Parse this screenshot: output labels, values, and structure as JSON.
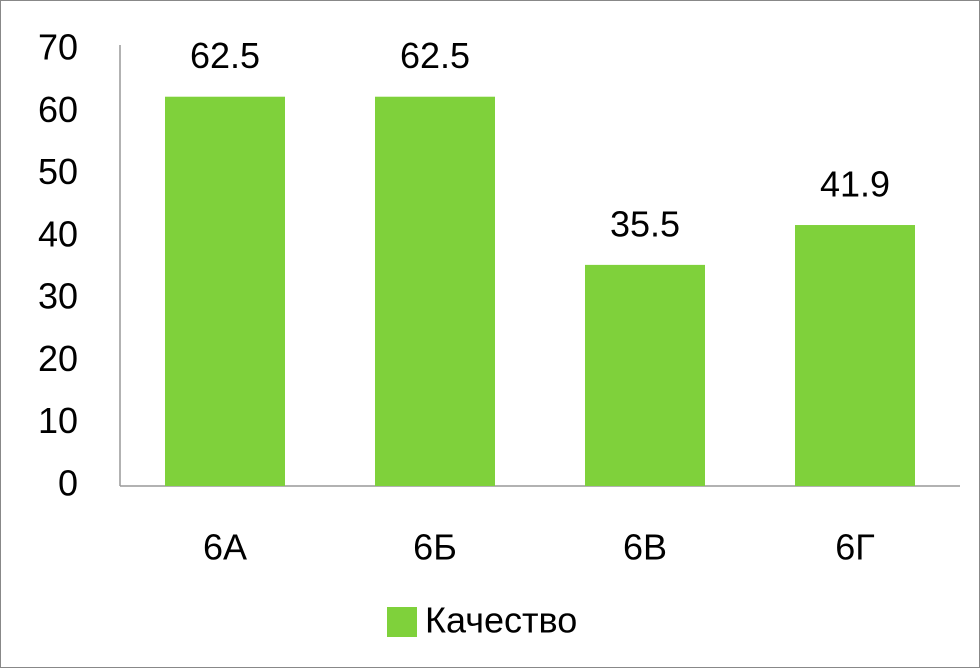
{
  "chart_data": {
    "type": "bar",
    "categories": [
      "6А",
      "6Б",
      "6В",
      "6Г"
    ],
    "series": [
      {
        "name": "Качество",
        "color": "#7fd13b",
        "values": [
          62.5,
          62.5,
          35.5,
          41.9
        ]
      }
    ],
    "ylim": [
      0,
      70
    ],
    "yticks": [
      0,
      10,
      20,
      30,
      40,
      50,
      60,
      70
    ],
    "grid": false,
    "legend": "bottom"
  }
}
